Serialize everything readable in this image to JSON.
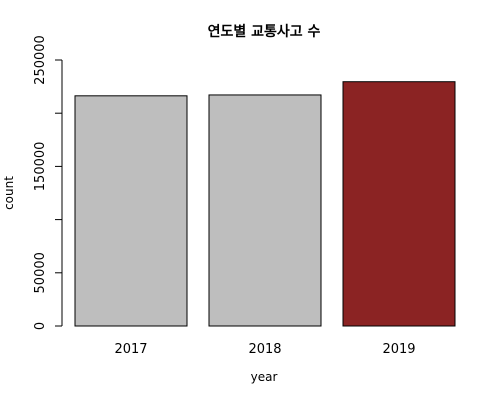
{
  "chart_data": {
    "type": "bar",
    "title": "연도별 교통사고 수",
    "xlabel": "year",
    "ylabel": "count",
    "categories": [
      "2017",
      "2018",
      "2019"
    ],
    "values": [
      216335,
      217148,
      229600
    ],
    "ylim": [
      0,
      250000
    ],
    "yticks": [
      0,
      50000,
      150000,
      250000
    ],
    "ytick_labels": [
      "0",
      "50000",
      "150000",
      "250000"
    ],
    "bar_colors": [
      "#bebebe",
      "#bebebe",
      "#8b2323"
    ],
    "grid": false,
    "legend": "none"
  }
}
